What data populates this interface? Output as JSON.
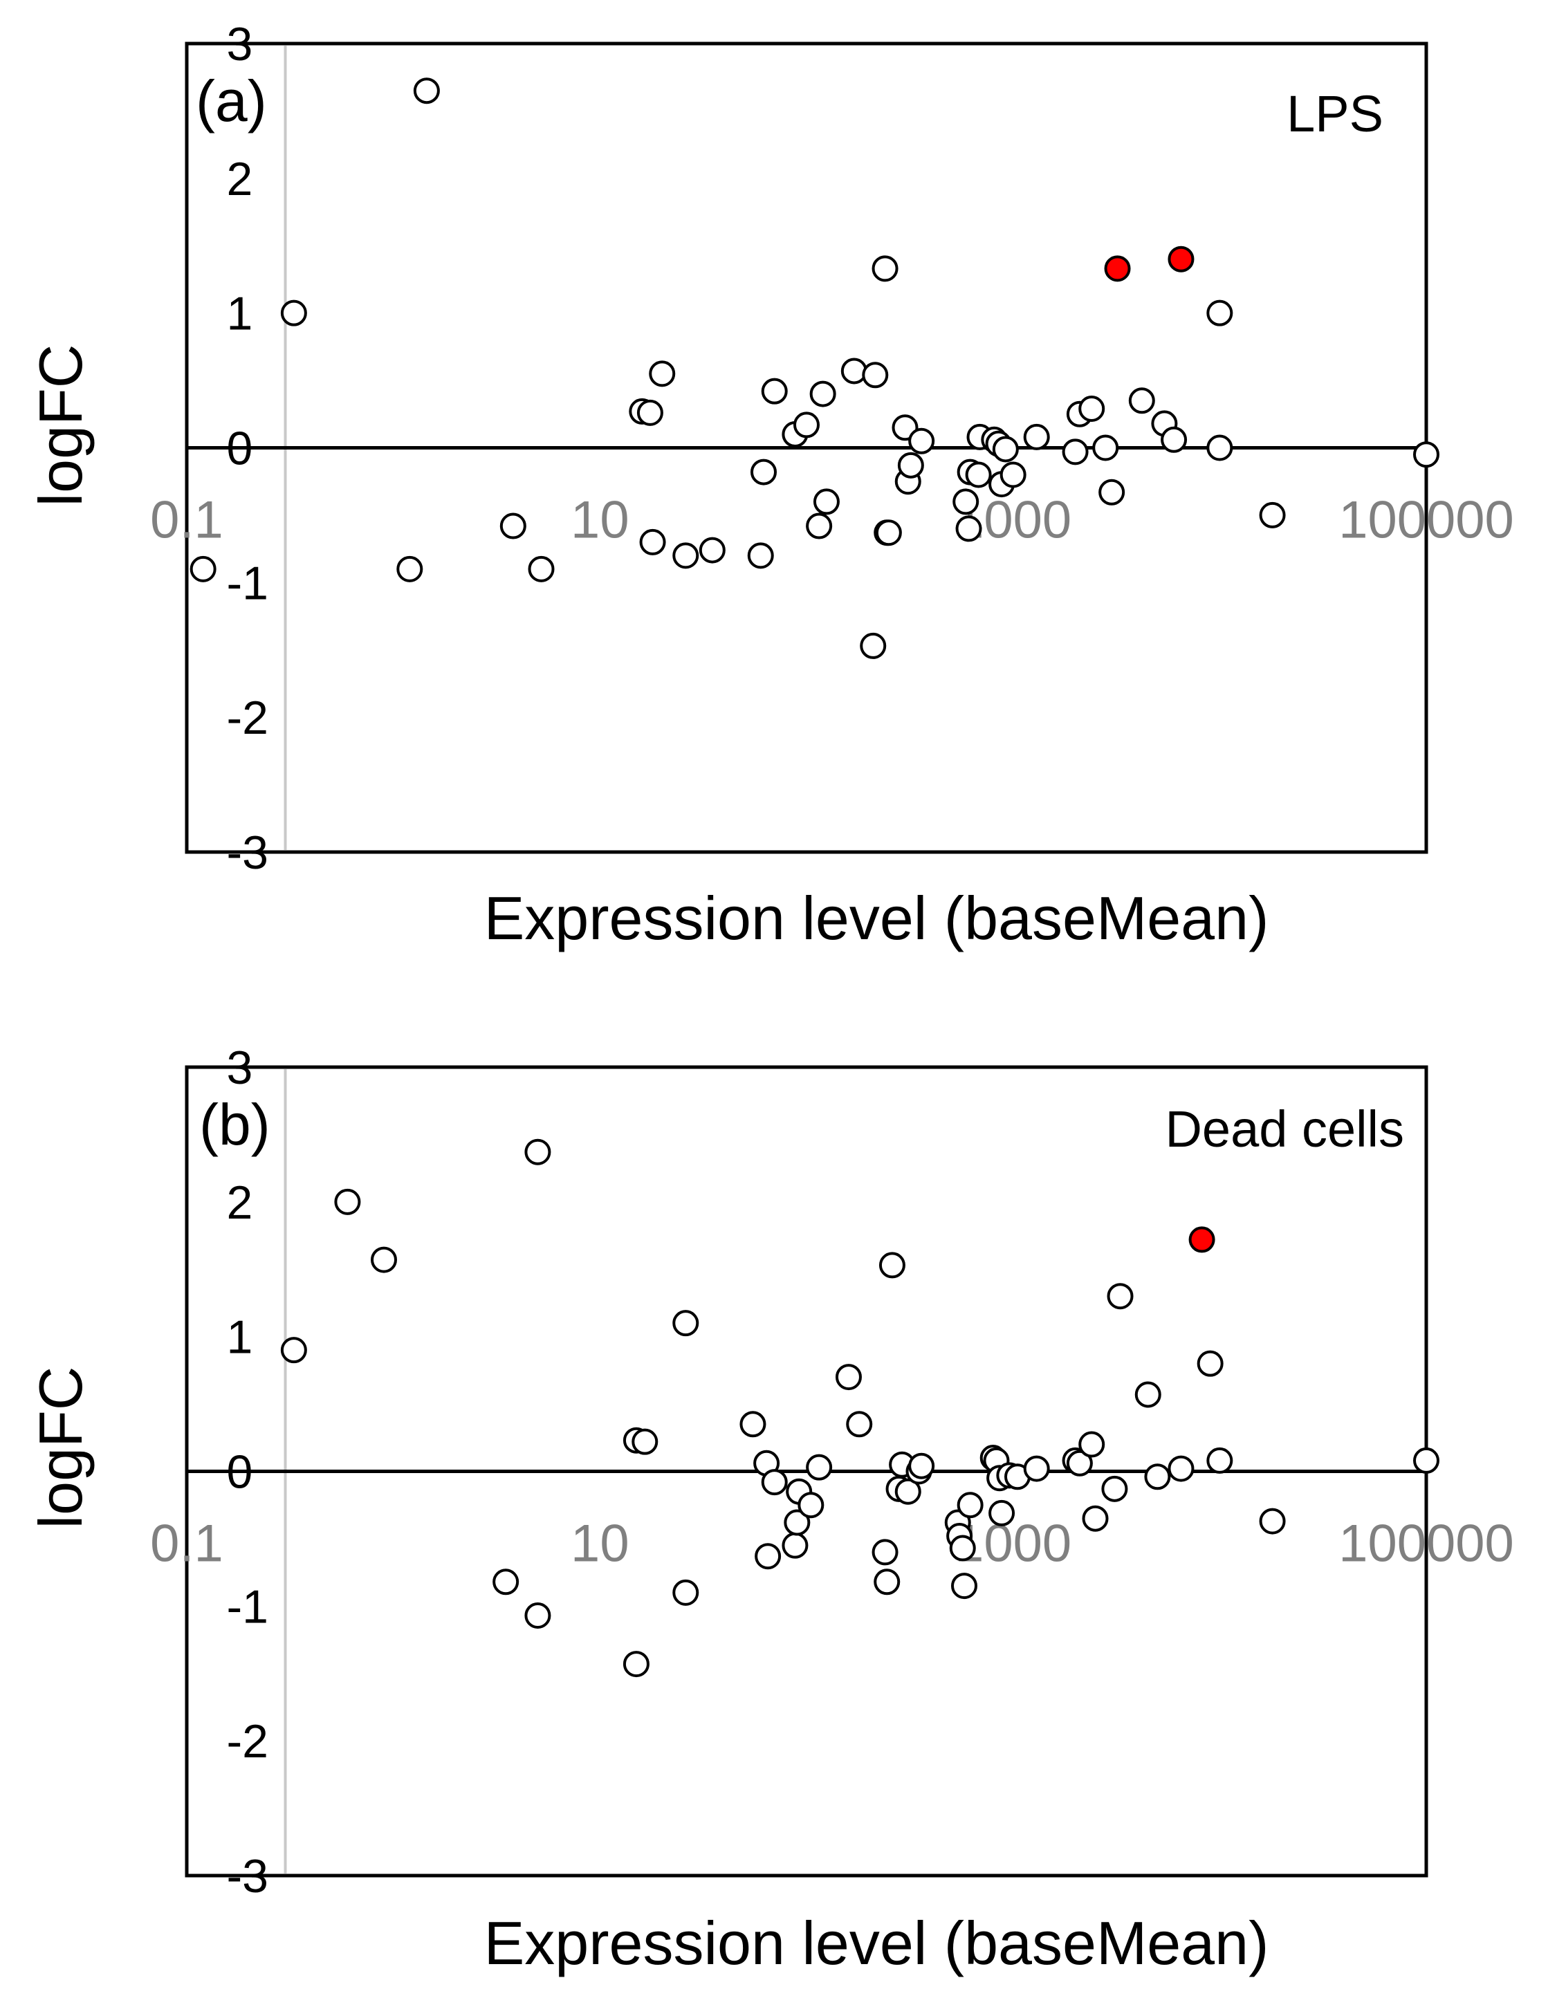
{
  "colors": {
    "frame": "#000000",
    "highlight": "#ff0000",
    "marker_edge": "#000000",
    "marker_face": "#ffffff",
    "tick_x": "#808080",
    "vline": "#c8c8c8"
  },
  "chart_data": [
    {
      "panel": "(a)",
      "title": "LPS",
      "type": "scatter",
      "xscale": "log10",
      "xlabel": "Expression level (baseMean)",
      "ylabel": "logFC",
      "xlim": [
        0.1,
        100000
      ],
      "ylim": [
        -3,
        3
      ],
      "xticks": [
        "0.1",
        "10",
        "1000",
        "100000"
      ],
      "yticks": [
        "3",
        "2",
        "1",
        "0",
        "-1",
        "-2",
        "-3"
      ],
      "reference_line_y": 0,
      "reference_line_x": 0.3,
      "grid": false,
      "points": [
        {
          "x": 0.12,
          "y": -0.9,
          "highlight": false
        },
        {
          "x": 0.33,
          "y": 1.0,
          "highlight": false
        },
        {
          "x": 1.2,
          "y": -0.9,
          "highlight": false
        },
        {
          "x": 1.45,
          "y": 2.65,
          "highlight": false
        },
        {
          "x": 3.8,
          "y": -0.58,
          "highlight": false
        },
        {
          "x": 5.2,
          "y": -0.9,
          "highlight": false
        },
        {
          "x": 16,
          "y": 0.27,
          "highlight": false
        },
        {
          "x": 17.5,
          "y": 0.26,
          "highlight": false
        },
        {
          "x": 18,
          "y": -0.7,
          "highlight": false
        },
        {
          "x": 20,
          "y": 0.55,
          "highlight": false
        },
        {
          "x": 26,
          "y": -0.8,
          "highlight": false
        },
        {
          "x": 35,
          "y": -0.76,
          "highlight": false
        },
        {
          "x": 60,
          "y": -0.8,
          "highlight": false
        },
        {
          "x": 62,
          "y": -0.18,
          "highlight": false
        },
        {
          "x": 70,
          "y": 0.42,
          "highlight": false
        },
        {
          "x": 88,
          "y": 0.1,
          "highlight": false
        },
        {
          "x": 100,
          "y": 0.17,
          "highlight": false
        },
        {
          "x": 115,
          "y": -0.58,
          "highlight": false
        },
        {
          "x": 120,
          "y": 0.4,
          "highlight": false
        },
        {
          "x": 125,
          "y": -0.4,
          "highlight": false
        },
        {
          "x": 170,
          "y": 0.57,
          "highlight": false
        },
        {
          "x": 210,
          "y": -1.47,
          "highlight": false
        },
        {
          "x": 215,
          "y": 0.54,
          "highlight": false
        },
        {
          "x": 240,
          "y": 1.33,
          "highlight": false
        },
        {
          "x": 245,
          "y": -0.63,
          "highlight": false
        },
        {
          "x": 250,
          "y": -0.63,
          "highlight": false
        },
        {
          "x": 300,
          "y": 0.15,
          "highlight": false
        },
        {
          "x": 310,
          "y": -0.25,
          "highlight": false
        },
        {
          "x": 320,
          "y": -0.13,
          "highlight": false
        },
        {
          "x": 360,
          "y": 0.05,
          "highlight": false
        },
        {
          "x": 590,
          "y": -0.4,
          "highlight": false
        },
        {
          "x": 610,
          "y": -0.6,
          "highlight": false
        },
        {
          "x": 620,
          "y": -0.18,
          "highlight": false
        },
        {
          "x": 680,
          "y": -0.2,
          "highlight": false
        },
        {
          "x": 690,
          "y": 0.08,
          "highlight": false
        },
        {
          "x": 810,
          "y": 0.06,
          "highlight": false
        },
        {
          "x": 850,
          "y": 0.03,
          "highlight": false
        },
        {
          "x": 880,
          "y": -0.27,
          "highlight": false
        },
        {
          "x": 920,
          "y": -0.01,
          "highlight": false
        },
        {
          "x": 1000,
          "y": -0.2,
          "highlight": false
        },
        {
          "x": 1300,
          "y": 0.08,
          "highlight": false
        },
        {
          "x": 2000,
          "y": -0.03,
          "highlight": false
        },
        {
          "x": 2100,
          "y": 0.25,
          "highlight": false
        },
        {
          "x": 2400,
          "y": 0.29,
          "highlight": false
        },
        {
          "x": 2800,
          "y": 0.0,
          "highlight": false
        },
        {
          "x": 3000,
          "y": -0.33,
          "highlight": false
        },
        {
          "x": 3200,
          "y": 1.33,
          "highlight": true
        },
        {
          "x": 4200,
          "y": 0.35,
          "highlight": false
        },
        {
          "x": 5400,
          "y": 0.18,
          "highlight": false
        },
        {
          "x": 6000,
          "y": 0.06,
          "highlight": false
        },
        {
          "x": 6500,
          "y": 1.4,
          "highlight": true
        },
        {
          "x": 10000,
          "y": 1.0,
          "highlight": false
        },
        {
          "x": 10000,
          "y": 0.0,
          "highlight": false
        },
        {
          "x": 18000,
          "y": -0.5,
          "highlight": false
        },
        {
          "x": 100000,
          "y": -0.05,
          "highlight": false
        }
      ]
    },
    {
      "panel": "(b)",
      "title": "Dead cells",
      "type": "scatter",
      "xscale": "log10",
      "xlabel": "Expression level (baseMean)",
      "ylabel": "logFC",
      "xlim": [
        0.1,
        100000
      ],
      "ylim": [
        -3,
        3
      ],
      "xticks": [
        "0.1",
        "10",
        "1000",
        "100000"
      ],
      "yticks": [
        "3",
        "2",
        "1",
        "0",
        "-1",
        "-2",
        "-3"
      ],
      "reference_line_y": 0,
      "reference_line_x": 0.3,
      "grid": false,
      "points": [
        {
          "x": 0.33,
          "y": 0.9,
          "highlight": false
        },
        {
          "x": 0.6,
          "y": 2.0,
          "highlight": false
        },
        {
          "x": 0.9,
          "y": 1.57,
          "highlight": false
        },
        {
          "x": 3.5,
          "y": -0.82,
          "highlight": false
        },
        {
          "x": 5.0,
          "y": 2.37,
          "highlight": false
        },
        {
          "x": 5.0,
          "y": -1.07,
          "highlight": false
        },
        {
          "x": 15,
          "y": 0.23,
          "highlight": false
        },
        {
          "x": 15,
          "y": -1.43,
          "highlight": false
        },
        {
          "x": 16.5,
          "y": 0.22,
          "highlight": false
        },
        {
          "x": 26,
          "y": 1.1,
          "highlight": false
        },
        {
          "x": 26,
          "y": -0.9,
          "highlight": false
        },
        {
          "x": 55,
          "y": 0.35,
          "highlight": false
        },
        {
          "x": 64,
          "y": 0.06,
          "highlight": false
        },
        {
          "x": 65,
          "y": -0.63,
          "highlight": false
        },
        {
          "x": 70,
          "y": -0.08,
          "highlight": false
        },
        {
          "x": 88,
          "y": -0.55,
          "highlight": false
        },
        {
          "x": 90,
          "y": -0.38,
          "highlight": false
        },
        {
          "x": 92,
          "y": -0.15,
          "highlight": false
        },
        {
          "x": 105,
          "y": -0.25,
          "highlight": false
        },
        {
          "x": 115,
          "y": 0.03,
          "highlight": false
        },
        {
          "x": 160,
          "y": 0.7,
          "highlight": false
        },
        {
          "x": 180,
          "y": 0.35,
          "highlight": false
        },
        {
          "x": 240,
          "y": -0.6,
          "highlight": false
        },
        {
          "x": 245,
          "y": -0.82,
          "highlight": false
        },
        {
          "x": 260,
          "y": 1.53,
          "highlight": false
        },
        {
          "x": 280,
          "y": -0.13,
          "highlight": false
        },
        {
          "x": 290,
          "y": 0.05,
          "highlight": false
        },
        {
          "x": 310,
          "y": -0.15,
          "highlight": false
        },
        {
          "x": 350,
          "y": 0.0,
          "highlight": false
        },
        {
          "x": 360,
          "y": 0.04,
          "highlight": false
        },
        {
          "x": 540,
          "y": -0.38,
          "highlight": false
        },
        {
          "x": 550,
          "y": -0.48,
          "highlight": false
        },
        {
          "x": 570,
          "y": -0.57,
          "highlight": false
        },
        {
          "x": 580,
          "y": -0.85,
          "highlight": false
        },
        {
          "x": 620,
          "y": -0.25,
          "highlight": false
        },
        {
          "x": 800,
          "y": 0.1,
          "highlight": false
        },
        {
          "x": 830,
          "y": 0.08,
          "highlight": false
        },
        {
          "x": 860,
          "y": -0.05,
          "highlight": false
        },
        {
          "x": 880,
          "y": -0.31,
          "highlight": false
        },
        {
          "x": 960,
          "y": -0.03,
          "highlight": false
        },
        {
          "x": 1050,
          "y": -0.04,
          "highlight": false
        },
        {
          "x": 1300,
          "y": 0.02,
          "highlight": false
        },
        {
          "x": 2000,
          "y": 0.08,
          "highlight": false
        },
        {
          "x": 2100,
          "y": 0.06,
          "highlight": false
        },
        {
          "x": 2400,
          "y": 0.2,
          "highlight": false
        },
        {
          "x": 2500,
          "y": -0.35,
          "highlight": false
        },
        {
          "x": 3100,
          "y": -0.13,
          "highlight": false
        },
        {
          "x": 3300,
          "y": 1.3,
          "highlight": false
        },
        {
          "x": 4500,
          "y": 0.57,
          "highlight": false
        },
        {
          "x": 5000,
          "y": -0.04,
          "highlight": false
        },
        {
          "x": 6500,
          "y": 0.02,
          "highlight": false
        },
        {
          "x": 8200,
          "y": 1.72,
          "highlight": true
        },
        {
          "x": 9000,
          "y": 0.8,
          "highlight": false
        },
        {
          "x": 10000,
          "y": 0.08,
          "highlight": false
        },
        {
          "x": 18000,
          "y": -0.37,
          "highlight": false
        },
        {
          "x": 100000,
          "y": 0.08,
          "highlight": false
        }
      ]
    }
  ]
}
